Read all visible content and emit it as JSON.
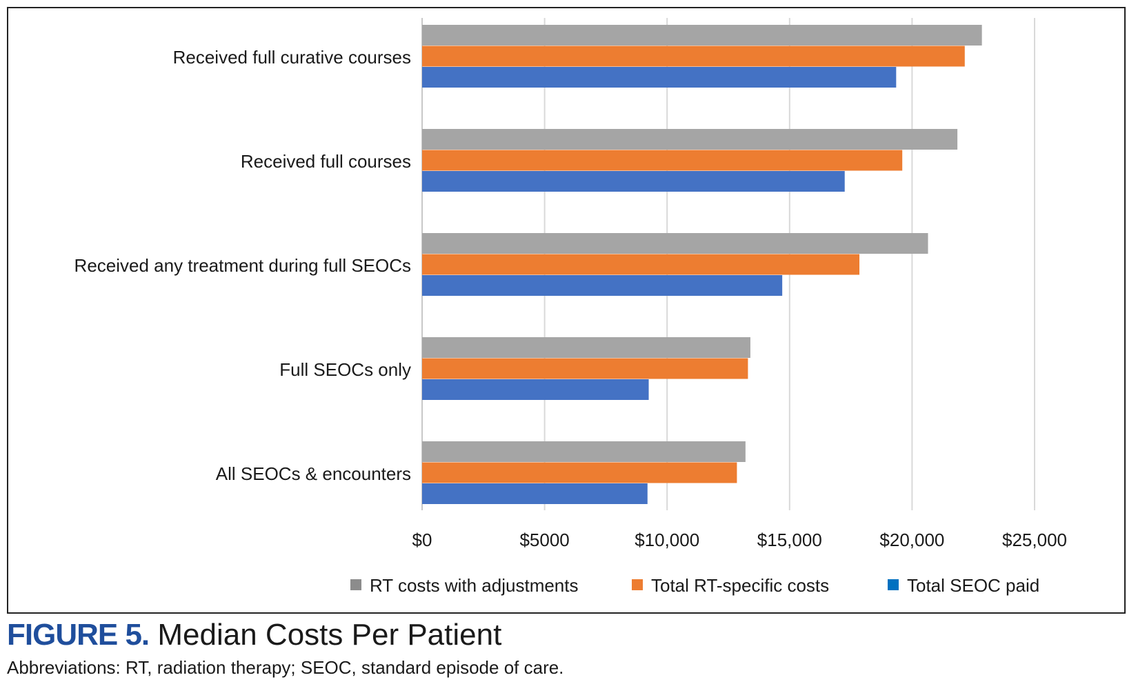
{
  "chart_data": {
    "type": "bar",
    "orientation": "horizontal",
    "title": "",
    "categories": [
      "Received full curative courses",
      "Received full courses",
      "Received any treatment during full SEOCs",
      "Full SEOCs only",
      "All SEOCs & encounters"
    ],
    "series": [
      {
        "name": "RT costs with adjustments",
        "color": "#a5a5a5",
        "legend_color": "#8c8c8c",
        "values": [
          22850,
          21850,
          20650,
          13400,
          13200
        ]
      },
      {
        "name": "Total RT-specific costs",
        "color": "#ed7d31",
        "legend_color": "#ed7d31",
        "values": [
          22150,
          19600,
          17850,
          13300,
          12850
        ]
      },
      {
        "name": "Total SEOC paid",
        "color": "#4472c4",
        "legend_color": "#0070c0",
        "values": [
          19350,
          17250,
          14700,
          9250,
          9200
        ]
      }
    ],
    "xlim": [
      0,
      25000
    ],
    "x_ticks": [
      0,
      5000,
      10000,
      15000,
      20000,
      25000
    ],
    "x_tick_labels": [
      "$0",
      "$5000",
      "$10,000",
      "$15,000",
      "$20,000",
      "$25,000"
    ],
    "xlabel": "",
    "ylabel": "",
    "grid": true,
    "legend_position": "bottom"
  },
  "figure": {
    "label": "FIGURE 5.",
    "title": "Median Costs Per Patient",
    "caption": "Abbreviations: RT, radiation therapy; SEOC, standard episode of care."
  }
}
